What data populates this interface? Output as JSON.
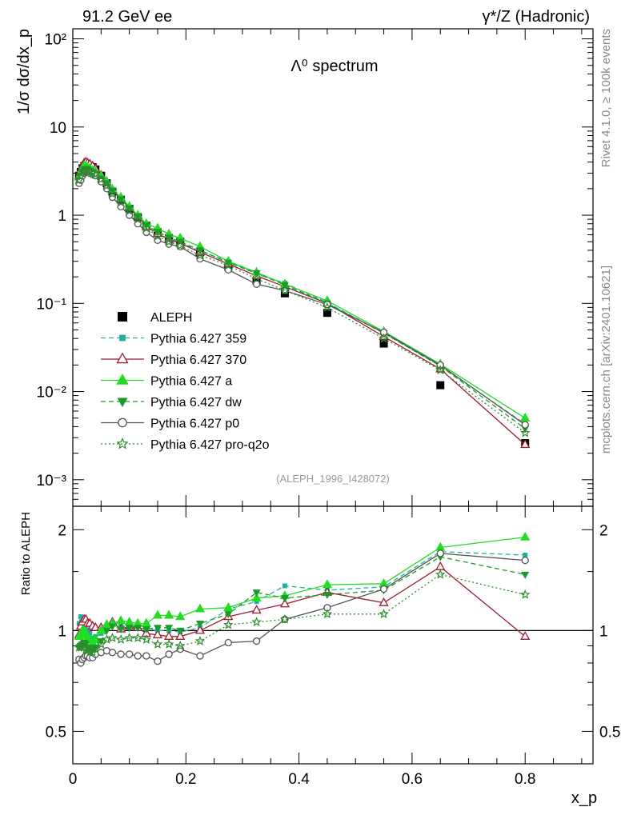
{
  "header": {
    "left": "91.2 GeV ee",
    "right": "γ*/Z (Hadronic)"
  },
  "side_labels": {
    "rivet": "Rivet 4.1.0, ≥ 100k events",
    "mcplots": "mcplots.cern.ch [arXiv:2401.10621]"
  },
  "chart_data": [
    {
      "type": "line",
      "panel": "main",
      "title": "Λ⁰ spectrum",
      "ylabel": "1/σ dσ/dx_p",
      "yscale": "log",
      "ylim": [
        0.0005,
        130
      ],
      "xlim": [
        0,
        0.92
      ],
      "watermark": "(ALEPH_1996_I428072)",
      "ytick_labels": [
        "10²",
        "10",
        "1",
        "10⁻¹",
        "10⁻²",
        "10⁻³"
      ],
      "x": [
        0.011,
        0.014,
        0.017,
        0.02,
        0.023,
        0.026,
        0.03,
        0.035,
        0.04,
        0.05,
        0.06,
        0.07,
        0.085,
        0.1,
        0.115,
        0.13,
        0.15,
        0.17,
        0.19,
        0.225,
        0.275,
        0.325,
        0.375,
        0.45,
        0.55,
        0.65,
        0.8
      ],
      "series": [
        {
          "name": "ALEPH",
          "color": "#000000",
          "marker": "square",
          "values": [
            2.8,
            3.1,
            3.4,
            3.6,
            3.7,
            3.7,
            3.6,
            3.5,
            3.3,
            2.8,
            2.3,
            1.85,
            1.5,
            1.18,
            0.95,
            0.76,
            0.64,
            0.55,
            0.5,
            0.38,
            0.26,
            0.18,
            0.13,
            0.078,
            0.035,
            0.0118,
            0.0026
          ]
        },
        {
          "name": "Pythia 6.427 359",
          "color": "#20b0a0",
          "marker": "square-small",
          "dash": "6,4",
          "values": [
            3.0,
            3.4,
            3.7,
            3.8,
            3.8,
            3.7,
            3.5,
            3.3,
            3.15,
            2.75,
            2.35,
            1.95,
            1.55,
            1.2,
            0.97,
            0.77,
            0.64,
            0.55,
            0.49,
            0.39,
            0.3,
            0.215,
            0.17,
            0.102,
            0.046,
            0.0195,
            0.0043
          ]
        },
        {
          "name": "Pythia 6.427 370",
          "color": "#9e1b32",
          "marker": "triangle-open",
          "values": [
            2.7,
            3.2,
            3.6,
            3.9,
            4.0,
            3.9,
            3.8,
            3.6,
            3.35,
            2.85,
            2.4,
            1.95,
            1.52,
            1.22,
            0.97,
            0.74,
            0.62,
            0.53,
            0.48,
            0.38,
            0.28,
            0.205,
            0.155,
            0.1,
            0.042,
            0.018,
            0.0025
          ]
        },
        {
          "name": "Pythia 6.427 a",
          "color": "#22dd22",
          "marker": "triangle",
          "dash": "",
          "values": [
            2.7,
            3.0,
            3.4,
            3.6,
            3.6,
            3.5,
            3.4,
            3.2,
            3.1,
            2.8,
            2.4,
            1.95,
            1.6,
            1.25,
            1.0,
            0.8,
            0.71,
            0.61,
            0.55,
            0.44,
            0.3,
            0.225,
            0.165,
            0.107,
            0.048,
            0.0205,
            0.005
          ]
        },
        {
          "name": "Pythia 6.427 dw",
          "color": "#1a9a2a",
          "marker": "triangle-down",
          "dash": "6,4",
          "values": [
            2.5,
            2.8,
            3.1,
            3.3,
            3.35,
            3.3,
            3.2,
            3.05,
            2.95,
            2.6,
            2.3,
            1.9,
            1.52,
            1.2,
            0.97,
            0.77,
            0.65,
            0.56,
            0.5,
            0.4,
            0.29,
            0.22,
            0.162,
            0.1,
            0.046,
            0.0195,
            0.0038
          ]
        },
        {
          "name": "Pythia 6.427 p0",
          "color": "#555555",
          "marker": "circle-open",
          "dash": "",
          "values": [
            2.3,
            2.5,
            2.8,
            3.0,
            3.1,
            3.1,
            3.0,
            2.9,
            2.8,
            2.4,
            2.0,
            1.6,
            1.25,
            1.0,
            0.8,
            0.64,
            0.52,
            0.47,
            0.44,
            0.32,
            0.24,
            0.165,
            0.14,
            0.097,
            0.047,
            0.02,
            0.0042
          ]
        },
        {
          "name": "Pythia 6.427 pro-q2o",
          "color": "#2e8b2e",
          "marker": "star",
          "dash": "2,3",
          "values": [
            2.5,
            2.8,
            3.1,
            3.2,
            3.25,
            3.2,
            3.1,
            3.0,
            2.9,
            2.55,
            2.15,
            1.75,
            1.4,
            1.12,
            0.9,
            0.71,
            0.58,
            0.5,
            0.45,
            0.35,
            0.27,
            0.19,
            0.14,
            0.09,
            0.04,
            0.0175,
            0.0034
          ]
        }
      ]
    },
    {
      "type": "line",
      "panel": "ratio",
      "ylabel": "Ratio to ALEPH",
      "xlabel": "x_p",
      "yscale": "log",
      "ylim": [
        0.4,
        2.35
      ],
      "xlim": [
        0,
        0.92
      ],
      "reference_line": 1,
      "ytick_labels": [
        "2",
        "1",
        "0.5"
      ],
      "xtick_labels": [
        "0",
        "0.2",
        "0.4",
        "0.6",
        "0.8"
      ],
      "x": [
        0.011,
        0.014,
        0.017,
        0.02,
        0.023,
        0.026,
        0.03,
        0.035,
        0.04,
        0.05,
        0.06,
        0.07,
        0.085,
        0.1,
        0.115,
        0.13,
        0.15,
        0.17,
        0.19,
        0.225,
        0.275,
        0.325,
        0.375,
        0.45,
        0.55,
        0.65,
        0.8
      ],
      "series": [
        {
          "name": "Pythia 6.427 359",
          "color": "#20b0a0",
          "marker": "square-small",
          "dash": "6,4",
          "values": [
            1.05,
            1.1,
            1.09,
            1.06,
            1.03,
            1.0,
            0.98,
            0.95,
            0.96,
            0.98,
            1.02,
            1.05,
            1.04,
            1.02,
            1.02,
            1.01,
            1.0,
            1.0,
            0.99,
            1.02,
            1.16,
            1.22,
            1.36,
            1.32,
            1.35,
            1.72,
            1.68
          ]
        },
        {
          "name": "Pythia 6.427 370",
          "color": "#9e1b32",
          "marker": "triangle-open",
          "dash": "",
          "values": [
            0.97,
            1.03,
            1.06,
            1.08,
            1.08,
            1.05,
            1.05,
            1.03,
            1.02,
            1.02,
            1.04,
            1.06,
            1.01,
            1.03,
            1.02,
            0.98,
            0.97,
            0.96,
            0.96,
            1.0,
            1.1,
            1.15,
            1.2,
            1.3,
            1.21,
            1.55,
            0.96
          ]
        },
        {
          "name": "Pythia 6.427 a",
          "color": "#22dd22",
          "marker": "triangle",
          "dash": "",
          "values": [
            0.96,
            0.97,
            1.0,
            1.0,
            0.97,
            0.95,
            0.94,
            0.92,
            0.94,
            1.0,
            1.04,
            1.05,
            1.07,
            1.06,
            1.05,
            1.05,
            1.11,
            1.11,
            1.1,
            1.16,
            1.17,
            1.25,
            1.27,
            1.37,
            1.38,
            1.77,
            1.9
          ]
        },
        {
          "name": "Pythia 6.427 dw",
          "color": "#1a9a2a",
          "marker": "triangle-down",
          "dash": "6,4",
          "values": [
            0.89,
            0.9,
            0.91,
            0.92,
            0.91,
            0.89,
            0.89,
            0.87,
            0.89,
            0.93,
            1.0,
            1.03,
            1.01,
            1.02,
            1.02,
            1.01,
            1.02,
            1.02,
            1.0,
            1.05,
            1.12,
            1.3,
            1.25,
            1.28,
            1.32,
            1.66,
            1.47
          ]
        },
        {
          "name": "Pythia 6.427 p0",
          "color": "#555555",
          "marker": "circle-open",
          "dash": "",
          "values": [
            0.82,
            0.8,
            0.82,
            0.83,
            0.84,
            0.84,
            0.83,
            0.83,
            0.85,
            0.86,
            0.87,
            0.86,
            0.85,
            0.85,
            0.84,
            0.84,
            0.81,
            0.85,
            0.88,
            0.84,
            0.92,
            0.93,
            1.08,
            1.17,
            1.33,
            1.7,
            1.62
          ]
        },
        {
          "name": "Pythia 6.427 pro-q2o",
          "color": "#2e8b2e",
          "marker": "star",
          "dash": "2,3",
          "values": [
            0.89,
            0.9,
            0.91,
            0.89,
            0.88,
            0.87,
            0.86,
            0.86,
            0.88,
            0.91,
            0.94,
            0.95,
            0.94,
            0.95,
            0.95,
            0.94,
            0.91,
            0.91,
            0.9,
            0.93,
            1.04,
            1.06,
            1.08,
            1.12,
            1.12,
            1.47,
            1.28
          ]
        }
      ]
    }
  ]
}
